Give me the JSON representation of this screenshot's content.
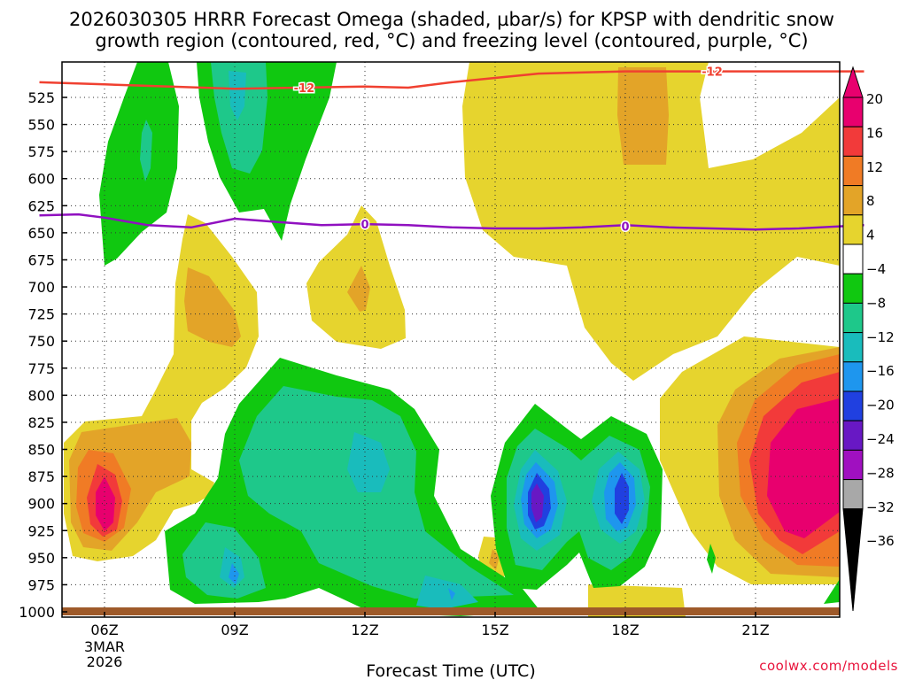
{
  "chart_data": {
    "type": "heatmap",
    "title_lines": [
      "2026030305 HRRR Forecast Omega (shaded, µbar/s) for KPSP with dendritic snow",
      "growth region (contoured, red, °C) and freezing level (contoured, purple, °C)"
    ],
    "xlabel": "Forecast Time (UTC)",
    "ylabel": "",
    "credit": "coolwx.com/models",
    "x_range_hours": [
      4.5,
      23.5
    ],
    "y_range_hpa": [
      1003,
      501
    ],
    "x_ticks": [
      {
        "hour": 6,
        "label": "06Z",
        "sublabels": [
          "3MAR",
          "2026"
        ]
      },
      {
        "hour": 9,
        "label": "09Z",
        "sublabels": []
      },
      {
        "hour": 12,
        "label": "12Z",
        "sublabels": []
      },
      {
        "hour": 15,
        "label": "15Z",
        "sublabels": []
      },
      {
        "hour": 18,
        "label": "18Z",
        "sublabels": []
      },
      {
        "hour": 21,
        "label": "21Z",
        "sublabels": []
      }
    ],
    "y_ticks": [
      525,
      550,
      575,
      600,
      625,
      650,
      675,
      700,
      725,
      750,
      775,
      800,
      825,
      850,
      875,
      900,
      925,
      950,
      975,
      1000
    ],
    "colorbar": {
      "labels": [
        "20",
        "16",
        "12",
        "8",
        "4",
        "−4",
        "−8",
        "−12",
        "−16",
        "−20",
        "−24",
        "−28",
        "−32",
        "−36"
      ],
      "colors": [
        "#e8006e",
        "#f23a3a",
        "#f07b25",
        "#e3a428",
        "#e6d42e",
        "#ffffff",
        "#10c810",
        "#1ec88a",
        "#19bcbc",
        "#1e96ee",
        "#2040e0",
        "#6818c4",
        "#a010c0",
        "#a8a8a8",
        "#000000"
      ]
    },
    "omega_field": [
      {
        "name": "positive-region-upper-right",
        "value_min": 4,
        "center": {
          "t": 19.2,
          "p": 540
        }
      },
      {
        "name": "positive-core-upper-right",
        "value_min": 8,
        "center": {
          "t": 18.4,
          "p": 565
        }
      },
      {
        "name": "positive-region-morning",
        "value_min": 4,
        "center": {
          "t": 9.0,
          "p": 700
        }
      },
      {
        "name": "positive-core-0830Z",
        "value_min": 8,
        "center": {
          "t": 8.7,
          "p": 695
        }
      },
      {
        "name": "positive-region-12Z",
        "value_min": 4,
        "center": {
          "t": 12.0,
          "p": 670
        }
      },
      {
        "name": "positive-core-12Z",
        "value_min": 8,
        "center": {
          "t": 12.0,
          "p": 675
        }
      },
      {
        "name": "positive-maximum-06Z",
        "value_min": 20,
        "center": {
          "t": 6.0,
          "p": 875
        }
      },
      {
        "name": "positive-maximum-22Z",
        "value_min": 20,
        "center": {
          "t": 22.5,
          "p": 850
        }
      },
      {
        "name": "negative-region-09Z-column",
        "value_max": -8,
        "center": {
          "t": 9.0,
          "p": 560
        }
      },
      {
        "name": "negative-region-morning-low",
        "value_max": -12,
        "center": {
          "t": 9.0,
          "p": 950
        }
      },
      {
        "name": "negative-region-1230Z",
        "value_max": -16,
        "center": {
          "t": 12.0,
          "p": 830
        }
      },
      {
        "name": "negative-minimum-16Z",
        "value_max": -28,
        "center": {
          "t": 16.0,
          "p": 865
        }
      },
      {
        "name": "negative-minimum-18Z",
        "value_max": -24,
        "center": {
          "t": 18.0,
          "p": 865
        }
      }
    ],
    "series": [
      {
        "name": "dendritic-snow-growth (-12 °C)",
        "color": "#f04030",
        "label": "-12",
        "points": [
          [
            4.5,
            511
          ],
          [
            6.0,
            513
          ],
          [
            7.5,
            515
          ],
          [
            9.0,
            517
          ],
          [
            10.5,
            516
          ],
          [
            12.0,
            515
          ],
          [
            13.0,
            516
          ],
          [
            14.0,
            511
          ],
          [
            16.0,
            503
          ],
          [
            18.0,
            501
          ],
          [
            20.0,
            501
          ],
          [
            22.0,
            501
          ],
          [
            23.5,
            501
          ]
        ]
      },
      {
        "name": "freezing level (0 °C)",
        "color": "#9010c0",
        "label": "0",
        "points": [
          [
            4.5,
            634
          ],
          [
            5.4,
            633
          ],
          [
            6.0,
            636
          ],
          [
            7.0,
            643
          ],
          [
            8.0,
            645
          ],
          [
            9.0,
            637
          ],
          [
            10.0,
            640
          ],
          [
            11.0,
            643
          ],
          [
            12.0,
            642
          ],
          [
            13.0,
            643
          ],
          [
            14.0,
            645
          ],
          [
            15.0,
            646
          ],
          [
            16.0,
            646
          ],
          [
            17.0,
            645
          ],
          [
            18.0,
            643
          ],
          [
            19.0,
            645
          ],
          [
            20.0,
            646
          ],
          [
            21.0,
            647
          ],
          [
            22.0,
            646
          ],
          [
            23.5,
            643
          ]
        ]
      }
    ],
    "line_labels": [
      {
        "text": "-12",
        "hour": 10.6,
        "p": 516
      },
      {
        "text": "-12",
        "hour": 20.0,
        "p": 501
      },
      {
        "text": "0",
        "hour": 12.0,
        "p": 642
      },
      {
        "text": "0",
        "hour": 18.0,
        "p": 644
      }
    ],
    "ground": {
      "p_top": 1000,
      "color": "#9e5a2a"
    }
  }
}
